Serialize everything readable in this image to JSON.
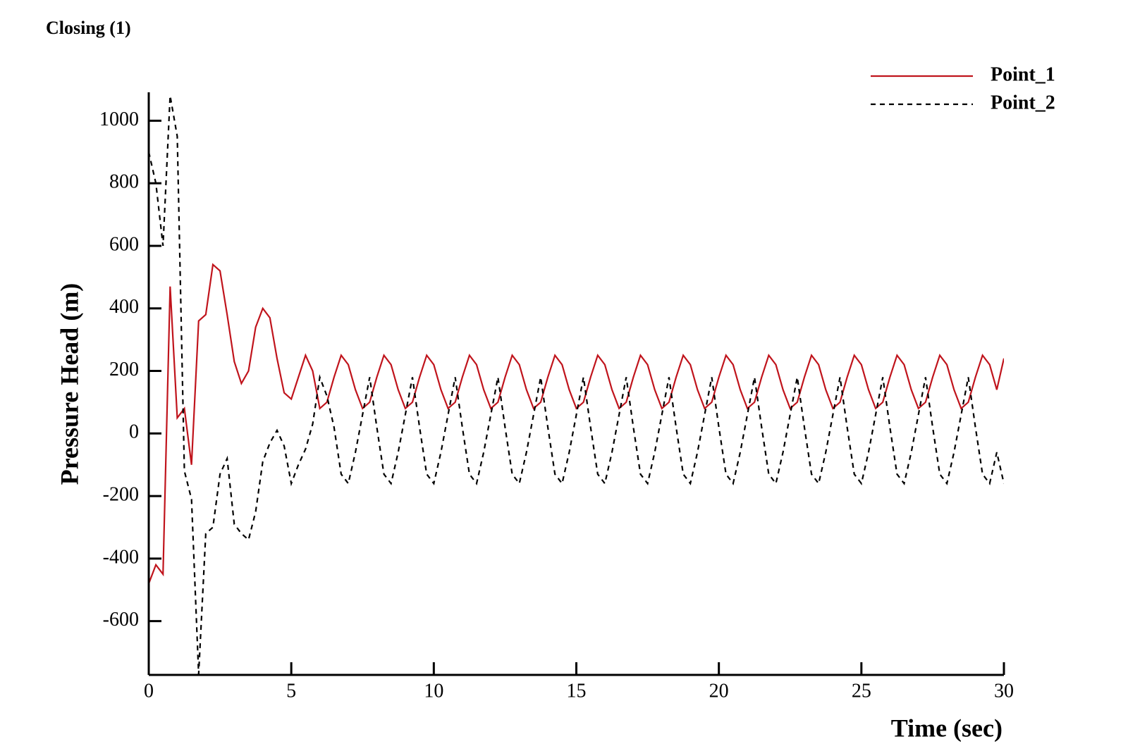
{
  "chart_data": {
    "type": "line",
    "title": "Closing (1)",
    "x_label": "Time (sec)",
    "y_label": "Pressure Head (m)",
    "xlim": [
      0,
      30
    ],
    "ylim": [
      -772,
      1091
    ],
    "xticks": [
      0,
      5,
      10,
      15,
      20,
      25,
      30
    ],
    "yticks": [
      -600,
      -400,
      -200,
      0,
      200,
      400,
      600,
      800,
      1000
    ],
    "legend": "upper right",
    "x": [
      0,
      0.25,
      0.5,
      0.75,
      1,
      1.25,
      1.5,
      1.75,
      2,
      2.25,
      2.5,
      2.75,
      3,
      3.25,
      3.5,
      3.75,
      4,
      4.25,
      4.5,
      4.75,
      5,
      5.25,
      5.5,
      5.75,
      6,
      6.25,
      6.5,
      6.75,
      7,
      7.25,
      7.5,
      7.75,
      8,
      8.25,
      8.5,
      8.75,
      9,
      9.25,
      9.5,
      9.75,
      10,
      10.25,
      10.5,
      10.75,
      11,
      11.25,
      11.5,
      11.75,
      12,
      12.25,
      12.5,
      12.75,
      13,
      13.25,
      13.5,
      13.75,
      14,
      14.25,
      14.5,
      14.75,
      15,
      15.25,
      15.5,
      15.75,
      16,
      16.25,
      16.5,
      16.75,
      17,
      17.25,
      17.5,
      17.75,
      18,
      18.25,
      18.5,
      18.75,
      19,
      19.25,
      19.5,
      19.75,
      20,
      20.25,
      20.5,
      20.75,
      21,
      21.25,
      21.5,
      21.75,
      22,
      22.25,
      22.5,
      22.75,
      23,
      23.25,
      23.5,
      23.75,
      24,
      24.25,
      24.5,
      24.75,
      25,
      25.25,
      25.5,
      25.75,
      26,
      26.25,
      26.5,
      26.75,
      27,
      27.25,
      27.5,
      27.75,
      28,
      28.25,
      28.5,
      28.75,
      29,
      29.25,
      29.5,
      29.75,
      30
    ],
    "series": [
      {
        "name": "Point_1",
        "color": "#c0141c",
        "line_style": "solid",
        "values": [
          -480,
          -420,
          -450,
          470,
          50,
          80,
          -100,
          360,
          380,
          540,
          520,
          380,
          230,
          160,
          200,
          340,
          400,
          370,
          240,
          130,
          110,
          180,
          250,
          200,
          80,
          100,
          180,
          250,
          220,
          140,
          80,
          100,
          180,
          250,
          220,
          140,
          80,
          100,
          180,
          250,
          220,
          140,
          80,
          100,
          180,
          250,
          220,
          140,
          80,
          100,
          180,
          250,
          220,
          140,
          80,
          100,
          180,
          250,
          220,
          140,
          80,
          100,
          180,
          250,
          220,
          140,
          80,
          100,
          180,
          250,
          220,
          140,
          80,
          100,
          180,
          250,
          220,
          140,
          80,
          100,
          180,
          250,
          220,
          140,
          80,
          100,
          180,
          250,
          220,
          140,
          80,
          100,
          180,
          250,
          220,
          140,
          80,
          100,
          180,
          250,
          220,
          140,
          80,
          100,
          180,
          250,
          220,
          140,
          80,
          100,
          180,
          250,
          220,
          140,
          80,
          100,
          180,
          250,
          220,
          140,
          240
        ]
      },
      {
        "name": "Point_2",
        "color": "#000000",
        "line_style": "dashed",
        "values": [
          900,
          800,
          600,
          1080,
          950,
          -120,
          -210,
          -770,
          -320,
          -300,
          -130,
          -80,
          -290,
          -320,
          -340,
          -250,
          -90,
          -30,
          10,
          -40,
          -160,
          -100,
          -50,
          30,
          180,
          120,
          20,
          -130,
          -160,
          -60,
          60,
          180,
          20,
          -130,
          -160,
          -60,
          60,
          180,
          20,
          -130,
          -160,
          -60,
          60,
          180,
          20,
          -130,
          -160,
          -60,
          60,
          180,
          20,
          -130,
          -160,
          -60,
          60,
          180,
          20,
          -130,
          -160,
          -60,
          60,
          180,
          20,
          -130,
          -160,
          -60,
          60,
          180,
          20,
          -130,
          -160,
          -60,
          60,
          180,
          20,
          -130,
          -160,
          -60,
          60,
          180,
          20,
          -130,
          -160,
          -60,
          60,
          180,
          20,
          -130,
          -160,
          -60,
          60,
          180,
          20,
          -130,
          -160,
          -60,
          60,
          180,
          20,
          -130,
          -160,
          -60,
          60,
          180,
          20,
          -130,
          -160,
          -60,
          60,
          180,
          20,
          -130,
          -160,
          -60,
          60,
          180,
          20,
          -130,
          -160,
          -60,
          -160
        ]
      }
    ]
  }
}
